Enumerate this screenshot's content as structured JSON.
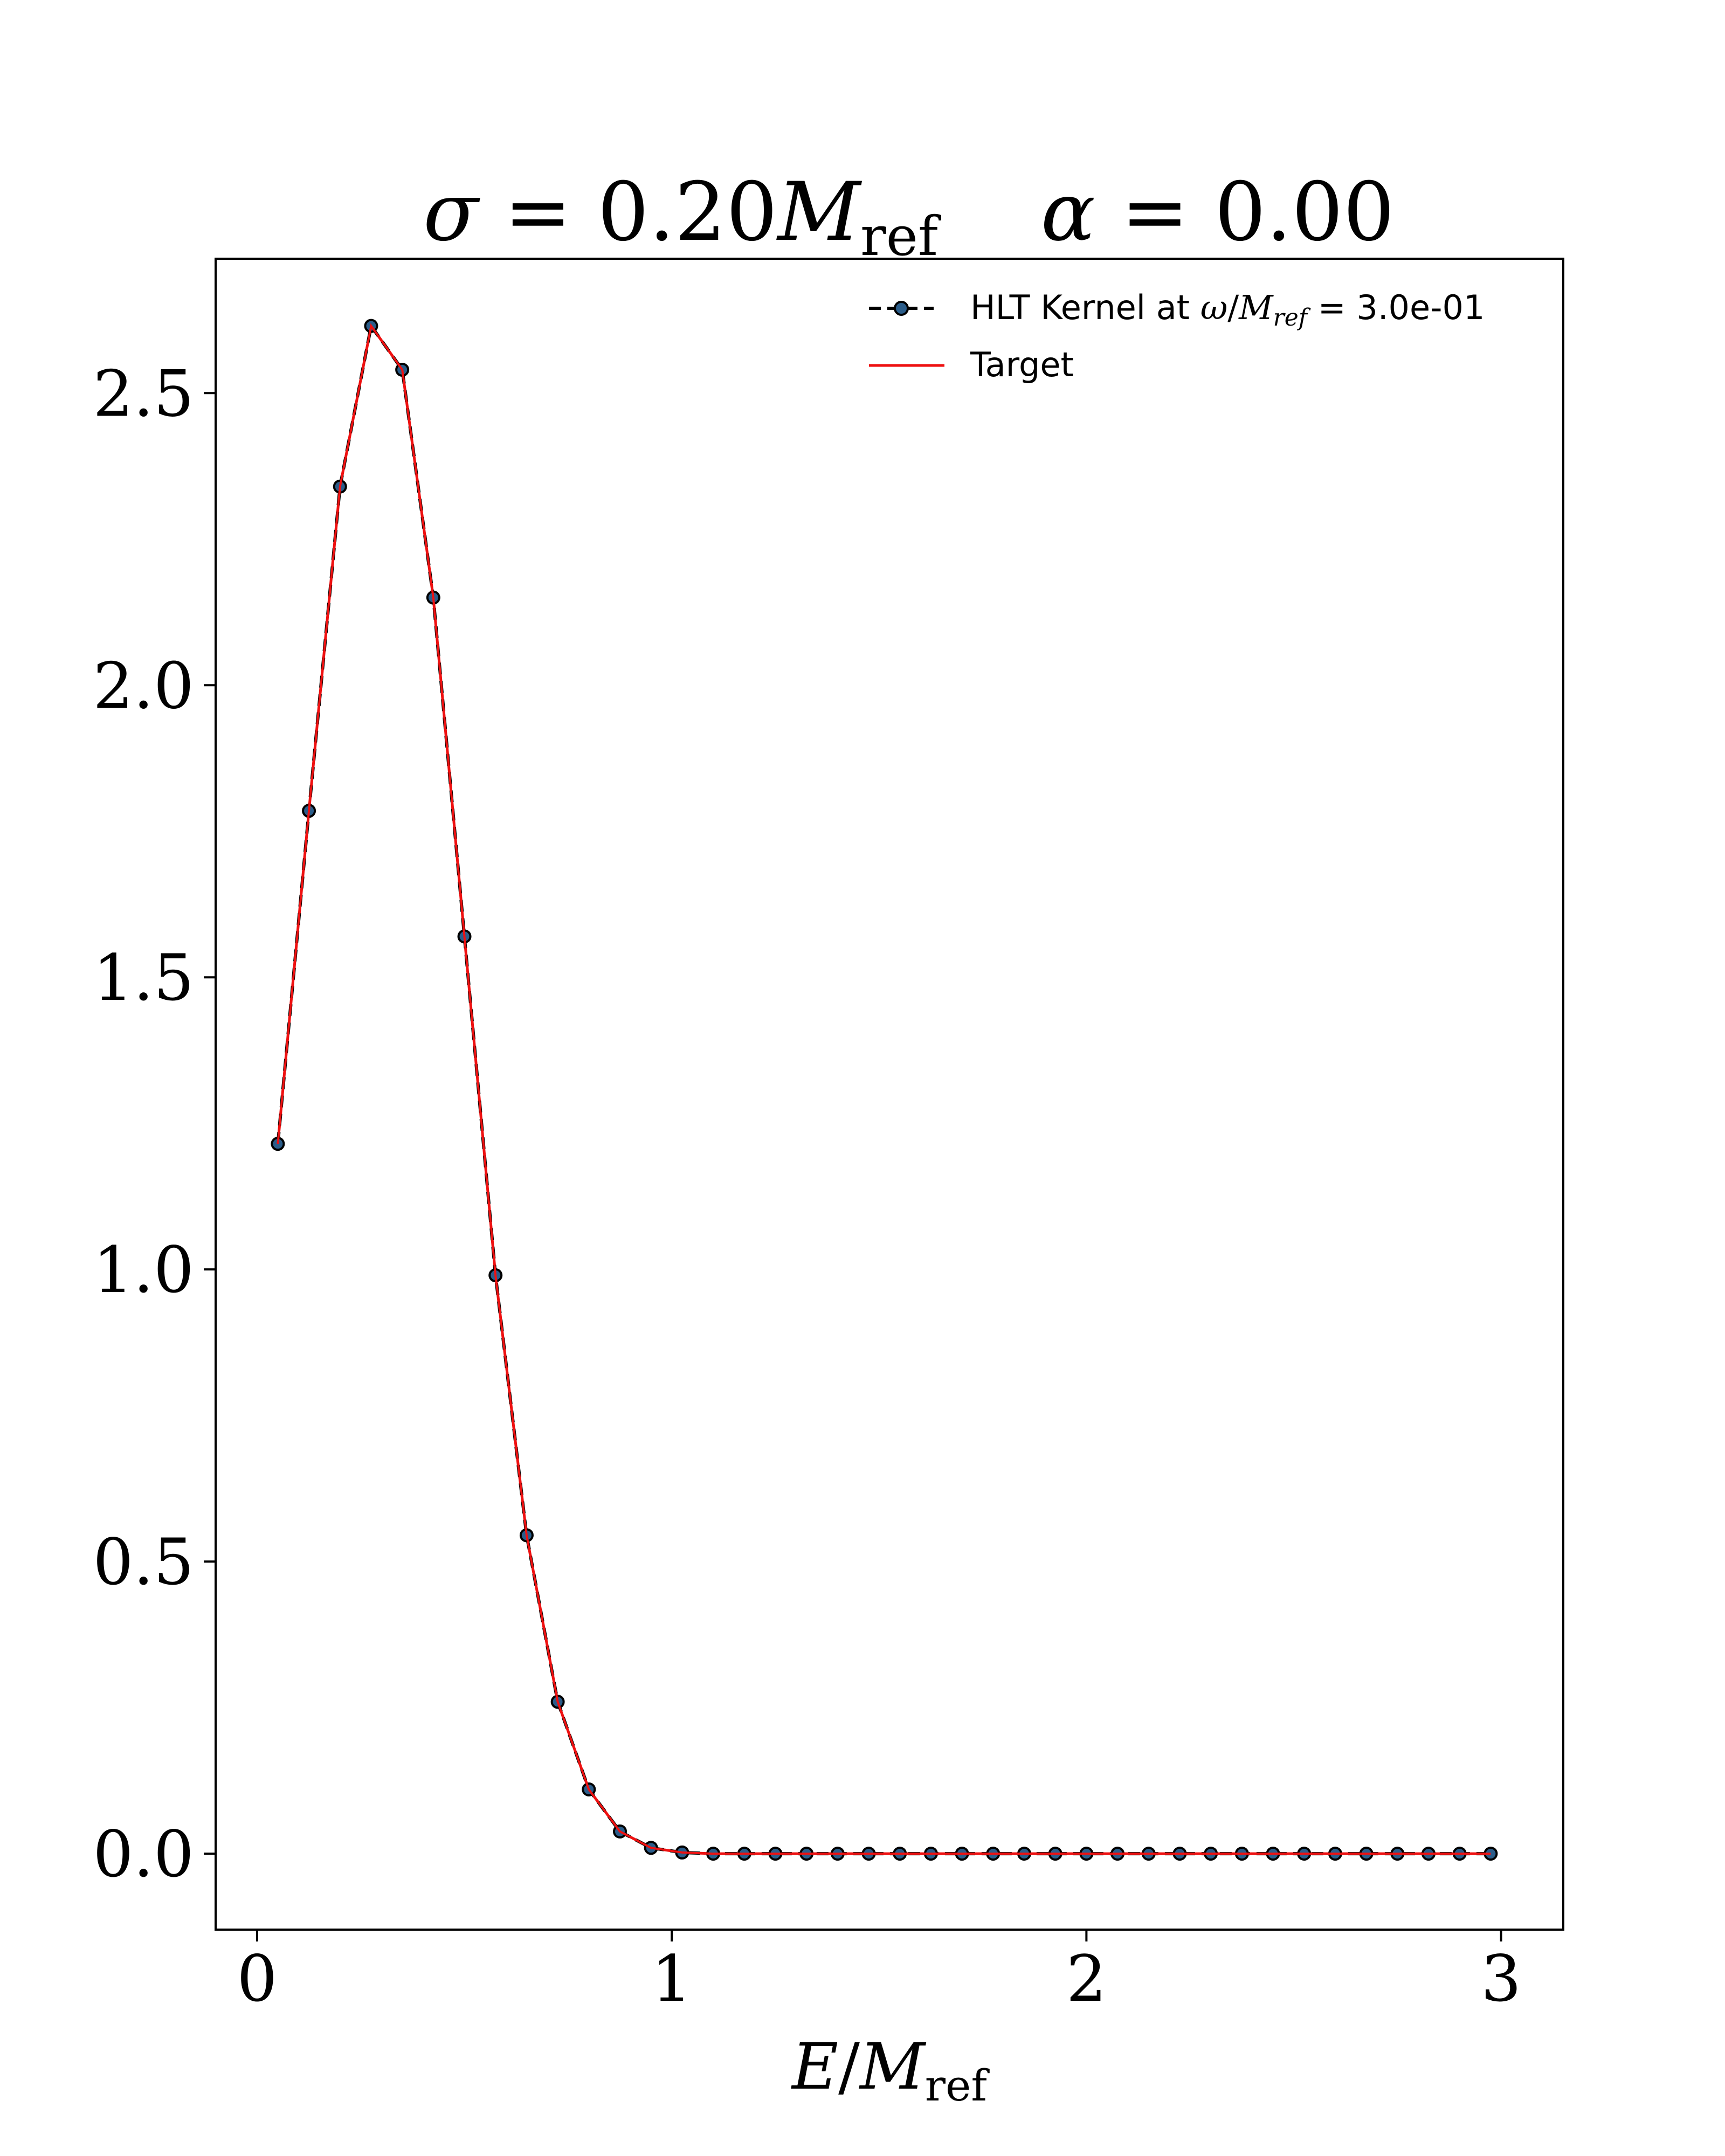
{
  "chart_data": {
    "type": "line",
    "title": {
      "sigma_symbol": "σ",
      "equals": " = ",
      "sigma_value": "0.20",
      "M_symbol": "M",
      "M_subscript": "ref",
      "alpha_symbol": "α",
      "alpha_value": "0.00"
    },
    "xlabel": {
      "E": "E",
      "slash": "/",
      "M": "M",
      "sub": "ref"
    },
    "ylabel": "",
    "xlim": [
      -0.1,
      3.15
    ],
    "ylim": [
      -0.13,
      2.73
    ],
    "x_ticks": [
      0,
      1,
      2,
      3
    ],
    "x_tick_labels": [
      "0",
      "1",
      "2",
      "3"
    ],
    "y_ticks": [
      0.0,
      0.5,
      1.0,
      1.5,
      2.0,
      2.5
    ],
    "y_tick_labels": [
      "0.0",
      "0.5",
      "1.0",
      "1.5",
      "2.0",
      "2.5"
    ],
    "grid": false,
    "legend_position": "top-right",
    "legend": {
      "kernel_prefix": "HLT Kernel at ",
      "kernel_omega": "ω",
      "kernel_slash": "/",
      "kernel_M": "M",
      "kernel_sub": "ref",
      "kernel_suffix": " = 3.0e-01",
      "target": "Target"
    },
    "x": [
      0.05,
      0.125,
      0.2,
      0.275,
      0.35,
      0.425,
      0.5,
      0.575,
      0.65,
      0.725,
      0.8,
      0.875,
      0.95,
      1.025,
      1.1,
      1.175,
      1.25,
      1.325,
      1.4,
      1.475,
      1.55,
      1.625,
      1.7,
      1.775,
      1.85,
      1.925,
      2.0,
      2.075,
      2.15,
      2.225,
      2.3,
      2.375,
      2.45,
      2.525,
      2.6,
      2.675,
      2.75,
      2.825,
      2.9,
      2.975
    ],
    "series": [
      {
        "name": "HLT Kernel at ω/M_ref = 3.0e-01",
        "style": "dashed-markers",
        "color": "#000000",
        "marker_color": "#2b5d8a",
        "values": [
          1.215,
          1.785,
          2.34,
          2.615,
          2.54,
          2.15,
          1.57,
          0.99,
          0.545,
          0.26,
          0.11,
          0.038,
          0.01,
          0.002,
          0.0,
          0.0,
          0.0,
          0.0,
          0.0,
          0.0,
          0.0,
          0.0,
          0.0,
          0.0,
          0.0,
          0.0,
          0.0,
          0.0,
          0.0,
          0.0,
          0.0,
          0.0,
          0.0,
          0.0,
          0.0,
          0.0,
          0.0,
          0.0,
          0.0,
          0.0
        ]
      },
      {
        "name": "Target",
        "style": "solid",
        "color": "#ee1111",
        "values": [
          1.215,
          1.785,
          2.34,
          2.615,
          2.54,
          2.15,
          1.57,
          0.99,
          0.545,
          0.26,
          0.11,
          0.038,
          0.01,
          0.002,
          0.0,
          0.0,
          0.0,
          0.0,
          0.0,
          0.0,
          0.0,
          0.0,
          0.0,
          0.0,
          0.0,
          0.0,
          0.0,
          0.0,
          0.0,
          0.0,
          0.0,
          0.0,
          0.0,
          0.0,
          0.0,
          0.0,
          0.0,
          0.0,
          0.0,
          0.0
        ]
      }
    ]
  }
}
